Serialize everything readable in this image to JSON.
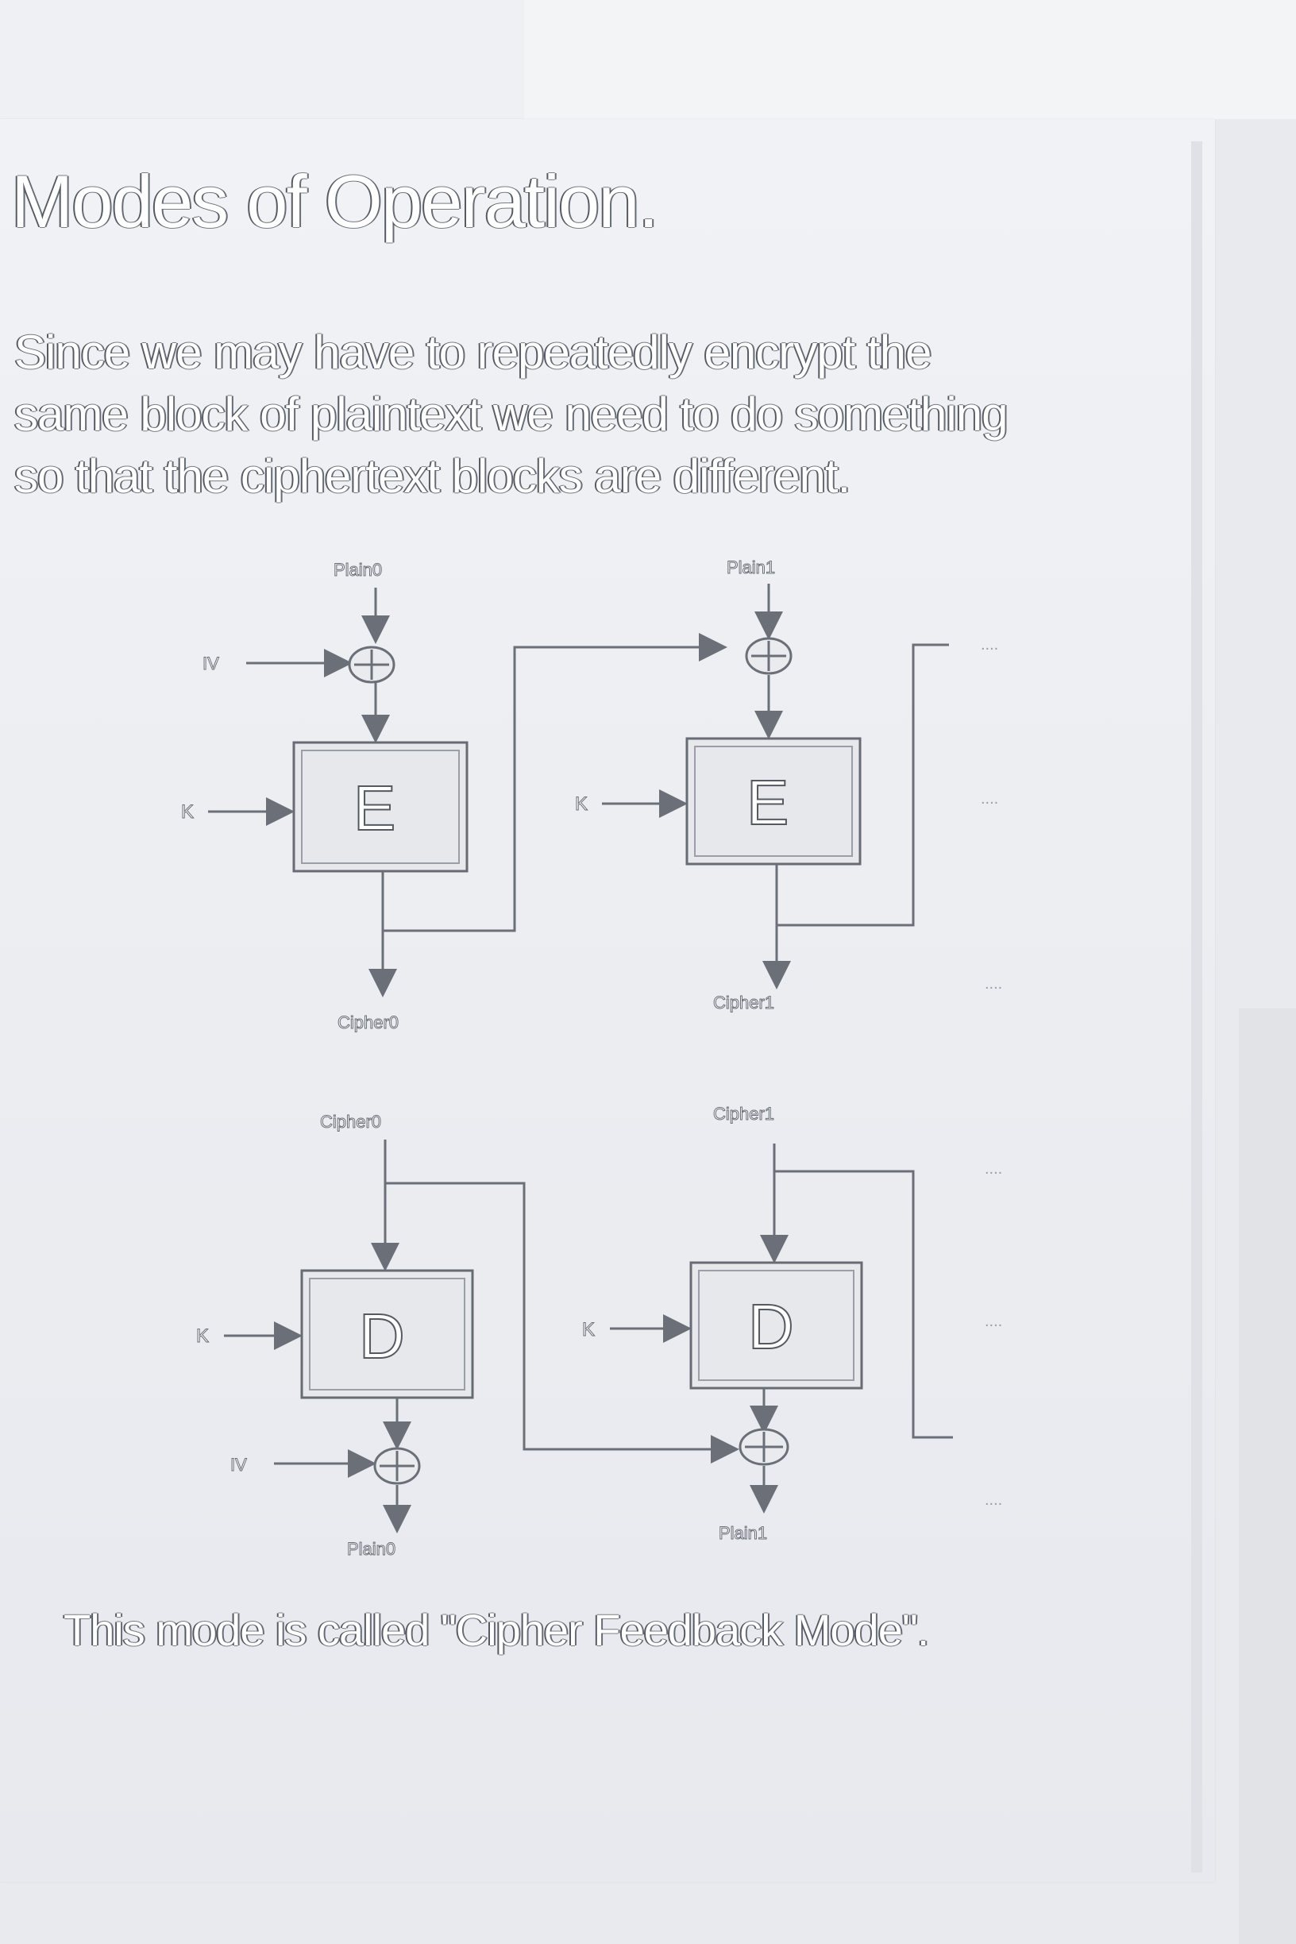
{
  "slide": {
    "title": "Modes of Operation.",
    "intro_lines": [
      "Since we may have to repeatedly encrypt the",
      "same block of plaintext we need to do something",
      "so that the ciphertext blocks are different."
    ],
    "caption": "This mode is called \"Cipher Feedback Mode\"."
  },
  "encrypt_diagram": {
    "block0": {
      "input": "Plain0",
      "iv": "IV",
      "key": "K",
      "op": "E",
      "output": "Cipher0"
    },
    "block1": {
      "input": "Plain1",
      "key": "K",
      "op": "E",
      "output": "Cipher1"
    },
    "continuation": "...."
  },
  "decrypt_diagram": {
    "block0": {
      "input": "Cipher0",
      "iv": "IV",
      "key": "K",
      "op": "D",
      "output": "Plain0"
    },
    "block1": {
      "input": "Cipher1",
      "key": "K",
      "op": "D",
      "output": "Plain1"
    },
    "continuation": "...."
  },
  "icons": {
    "xor": "xor-circle-plus-icon",
    "arrow": "arrowhead-icon"
  }
}
